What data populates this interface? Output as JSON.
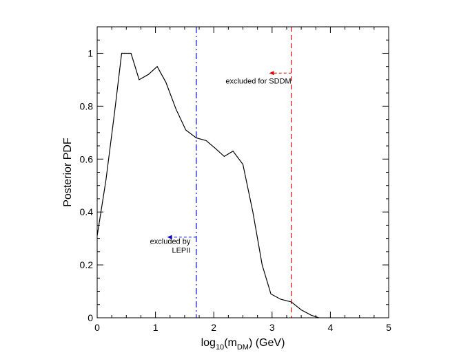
{
  "chart_data": {
    "type": "line",
    "xlabel_main": "log",
    "xlabel_sub": "10",
    "xlabel_mid": "(m",
    "xlabel_sub2": "DM",
    "xlabel_end": ") (GeV)",
    "ylabel": "Posterior PDF",
    "xlim": [
      0,
      5
    ],
    "ylim": [
      0,
      1.1
    ],
    "xticks": [
      0,
      1,
      2,
      3,
      4,
      5
    ],
    "xtick_labels": [
      "0",
      "1",
      "2",
      "3",
      "4",
      "5"
    ],
    "yticks": [
      0,
      0.2,
      0.4,
      0.6,
      0.8,
      1
    ],
    "ytick_labels": [
      "0",
      "0.2",
      "0.4",
      "0.6",
      "0.8",
      "1"
    ],
    "grid": false,
    "series": [
      {
        "color": "#000000",
        "x": [
          0.0,
          0.15,
          0.3,
          0.42,
          0.58,
          0.72,
          0.88,
          1.03,
          1.18,
          1.35,
          1.52,
          1.7,
          1.87,
          2.03,
          2.18,
          2.33,
          2.5,
          2.67,
          2.83,
          2.98,
          3.15,
          3.33,
          3.5,
          3.67,
          3.8
        ],
        "y": [
          0.31,
          0.52,
          0.78,
          1.0,
          1.0,
          0.9,
          0.92,
          0.95,
          0.89,
          0.79,
          0.71,
          0.68,
          0.67,
          0.64,
          0.61,
          0.63,
          0.58,
          0.4,
          0.2,
          0.09,
          0.07,
          0.06,
          0.03,
          0.01,
          0.0
        ]
      }
    ],
    "vlines": [
      {
        "x": 1.7,
        "color": "#0000cc",
        "style": "dash-dot"
      },
      {
        "x": 3.33,
        "color": "#dd0000",
        "style": "dashed"
      }
    ],
    "annotations": [
      {
        "lines": [
          "excluded for SDDM"
        ],
        "color": "#dd0000",
        "arrow_x": [
          3.33,
          2.95
        ],
        "arrow_y": 0.925,
        "text_x": 3.33,
        "text_y": 0.885,
        "anchor": "end"
      },
      {
        "lines": [
          "excluded by",
          "LEPII"
        ],
        "color": "#0000cc",
        "arrow_x": [
          1.7,
          1.2
        ],
        "arrow_y": 0.305,
        "text_x": 1.6,
        "text_y": 0.28,
        "anchor": "end"
      }
    ]
  }
}
